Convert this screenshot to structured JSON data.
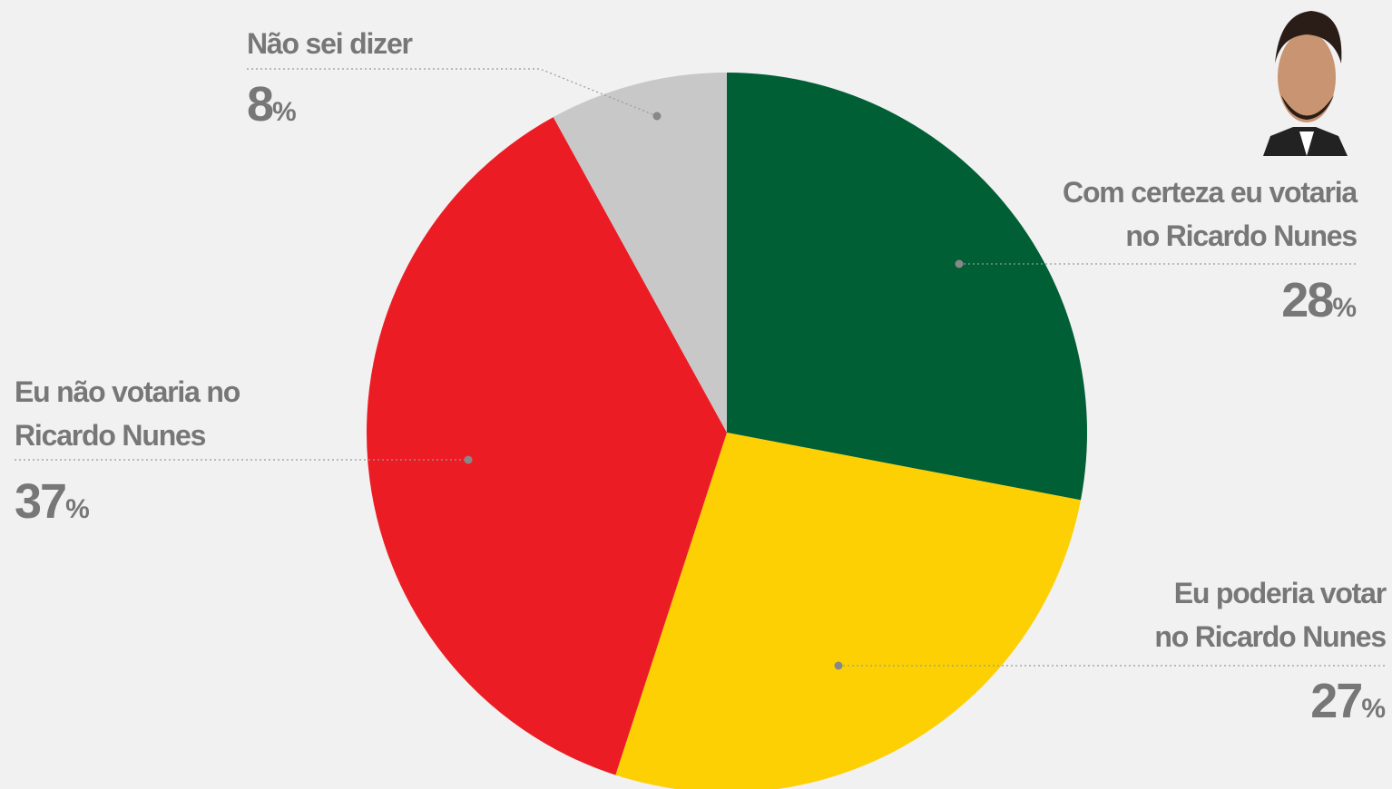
{
  "chart_data": {
    "type": "pie",
    "categories": [
      "Com certeza eu votaria no Ricardo Nunes",
      "Eu poderia votar no Ricardo Nunes",
      "Eu não votaria no Ricardo Nunes",
      "Não sei dizer"
    ],
    "values": [
      28,
      27,
      37,
      8
    ],
    "unit": "%",
    "colors": [
      "#005f35",
      "#fdd004",
      "#ec1c24",
      "#c8c8c8"
    ]
  }
}
